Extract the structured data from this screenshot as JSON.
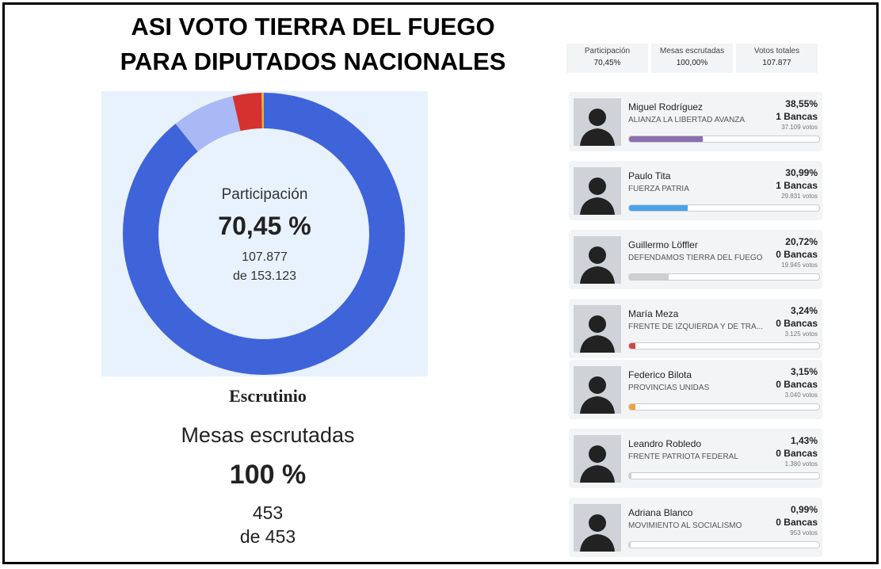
{
  "title": [
    "ASI VOTO TIERRA DEL FUEGO",
    "PARA DIPUTADOS NACIONALES"
  ],
  "stats": [
    {
      "label": "Participación",
      "value": "70,45%"
    },
    {
      "label": "Mesas escrutadas",
      "value": "100,00%"
    },
    {
      "label": "Votos totales",
      "value": "107.877"
    }
  ],
  "donut": {
    "label": "Participación",
    "percent": "70,45 %",
    "votes": "107.877",
    "of": "de 153.123",
    "segments": [
      {
        "color": "#3f63d9",
        "value": 89.2
      },
      {
        "color": "#a9b9f5",
        "value": 7.2
      },
      {
        "color": "#d4312f",
        "value": 3.3
      },
      {
        "color": "#e8b23a",
        "value": 0.3
      }
    ]
  },
  "scrutiny": {
    "title": "Escrutinio",
    "label": "Mesas escrutadas",
    "percent": "100 %",
    "count": "453",
    "of": "de 453"
  },
  "candidates": [
    {
      "name": "Miguel Rodríguez",
      "party": "ALIANZA LA LIBERTAD AVANZA",
      "percent": {
        "value": 38.55,
        "label": "38,55%"
      },
      "seats": "1 Bancas",
      "votes": "37.109 votos",
      "color": "#8b6db0"
    },
    {
      "name": "Paulo Tita",
      "party": "FUERZA PATRIA",
      "percent": {
        "value": 30.99,
        "label": "30,99%"
      },
      "seats": "1 Bancas",
      "votes": "29.831 votos",
      "color": "#4aa3ea"
    },
    {
      "name": "Guillermo Löffler",
      "party": "DEFENDAMOS TIERRA DEL FUEGO",
      "percent": {
        "value": 20.72,
        "label": "20,72%"
      },
      "seats": "0 Bancas",
      "votes": "19.945 votos",
      "color": "#cfcfcf"
    },
    {
      "name": "María Meza",
      "party": "FRENTE DE IZQUIERDA Y DE TRA...",
      "percent": {
        "value": 3.24,
        "label": "3,24%"
      },
      "seats": "0 Bancas",
      "votes": "3.125 votos",
      "color": "#d04545"
    },
    {
      "name": "Federico Bilota",
      "party": "PROVINCIAS UNIDAS",
      "percent": {
        "value": 3.15,
        "label": "3,15%"
      },
      "seats": "0 Bancas",
      "votes": "3.040 votos",
      "color": "#f0a040"
    },
    {
      "name": "Leandro Robledo",
      "party": "FRENTE PATRIOTA FEDERAL",
      "percent": {
        "value": 1.43,
        "label": "1,43%"
      },
      "seats": "0 Bancas",
      "votes": "1.380 votos",
      "color": "#cfcfcf"
    },
    {
      "name": "Adriana Blanco",
      "party": "MOVIMIENTO AL SOCIALISMO",
      "percent": {
        "value": 0.99,
        "label": "0,99%"
      },
      "seats": "0 Bancas",
      "votes": "953 votos",
      "color": "#cfcfcf"
    }
  ]
}
